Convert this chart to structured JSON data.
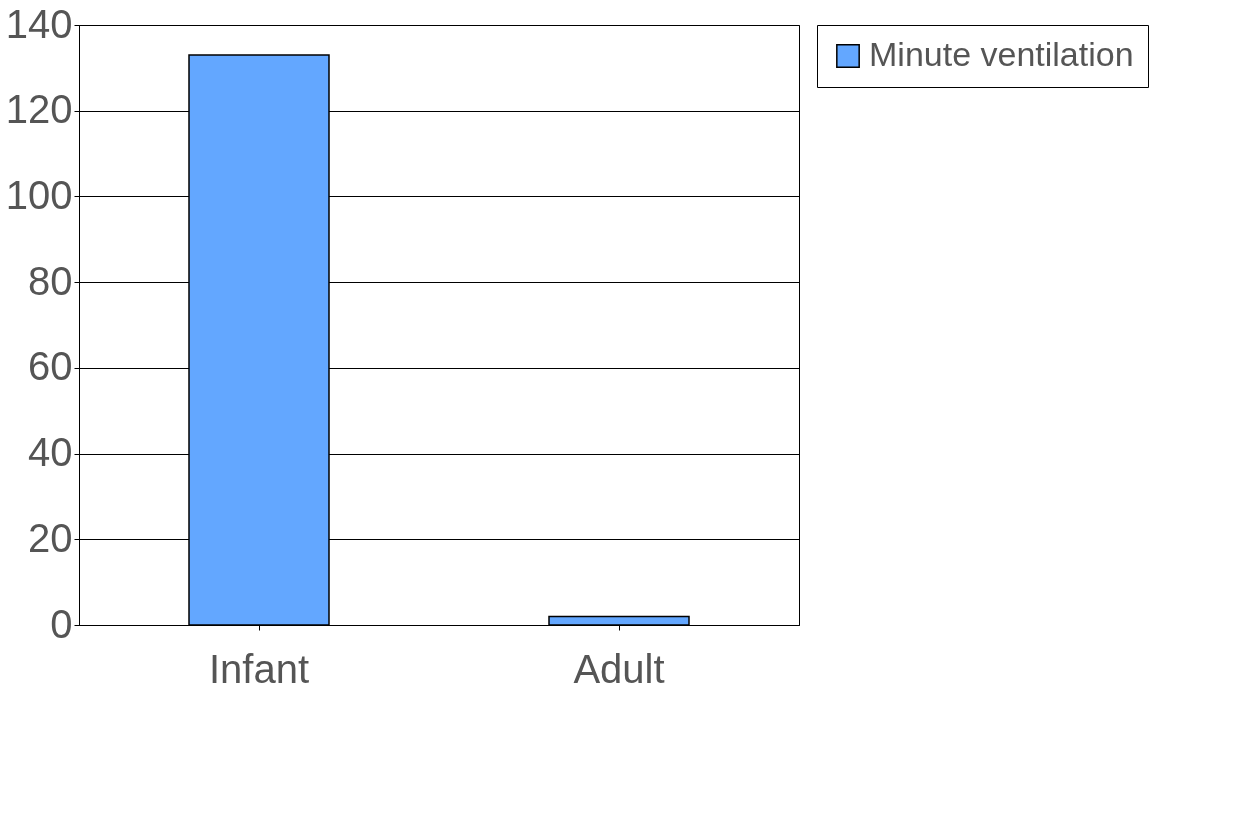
{
  "chart_data": {
    "type": "bar",
    "categories": [
      "Infant",
      "Adult"
    ],
    "series": [
      {
        "name": "Minute ventilation",
        "color": "#63a7ff",
        "values": [
          133,
          2
        ]
      }
    ],
    "ylim": [
      0,
      140
    ],
    "yticks": [
      0,
      20,
      40,
      60,
      80,
      100,
      120,
      140
    ],
    "grid": "y",
    "legend": "right"
  }
}
